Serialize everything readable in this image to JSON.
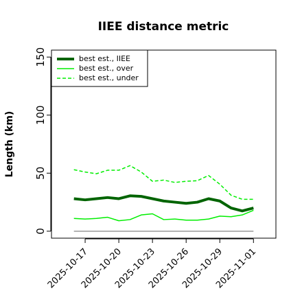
{
  "chart_data": {
    "type": "line",
    "title": "IIEE distance metric",
    "y_label": "Length (km)",
    "x": [
      "2025-10-16",
      "2025-10-17",
      "2025-10-18",
      "2025-10-19",
      "2025-10-20",
      "2025-10-21",
      "2025-10-22",
      "2025-10-23",
      "2025-10-24",
      "2025-10-25",
      "2025-10-26",
      "2025-10-27",
      "2025-10-28",
      "2025-10-29",
      "2025-10-30",
      "2025-10-31",
      "2025-11-01"
    ],
    "series": [
      {
        "name": "best est., IIEE",
        "color": "#006400",
        "width": 4,
        "dash": false,
        "values": [
          28,
          27,
          28,
          29,
          28,
          30.5,
          30,
          28,
          26,
          25,
          24,
          25,
          28,
          26,
          20,
          17.5,
          20
        ]
      },
      {
        "name": "best est., over",
        "color": "#00ee00",
        "width": 1.5,
        "dash": false,
        "values": [
          11,
          10.5,
          11,
          12,
          9,
          10,
          14,
          15,
          10,
          10.5,
          9.5,
          9.5,
          10.5,
          13,
          12.5,
          14,
          18
        ]
      },
      {
        "name": "best est., under",
        "color": "#00ee00",
        "width": 1.5,
        "dash": true,
        "values": [
          53,
          51,
          49.5,
          52.5,
          52.5,
          56.5,
          51,
          43,
          44,
          42,
          43,
          43.5,
          48,
          40.5,
          31,
          27.5,
          27.5
        ]
      },
      {
        "color": "#999999",
        "width": 1.5,
        "dash": false,
        "values": [
          0,
          0,
          0,
          0,
          0,
          0,
          0,
          0,
          0,
          0,
          0,
          0,
          0,
          0,
          0,
          0,
          0
        ]
      }
    ],
    "xlim": [
      "2025-10-14",
      "2025-11-03"
    ],
    "xticks": [
      "2025-10-17",
      "2025-10-20",
      "2025-10-23",
      "2025-10-26",
      "2025-10-29",
      "2025-11-01"
    ],
    "ylim": [
      -6,
      156
    ],
    "yticks": [
      0,
      50,
      100,
      150
    ],
    "legend": "top-left"
  }
}
